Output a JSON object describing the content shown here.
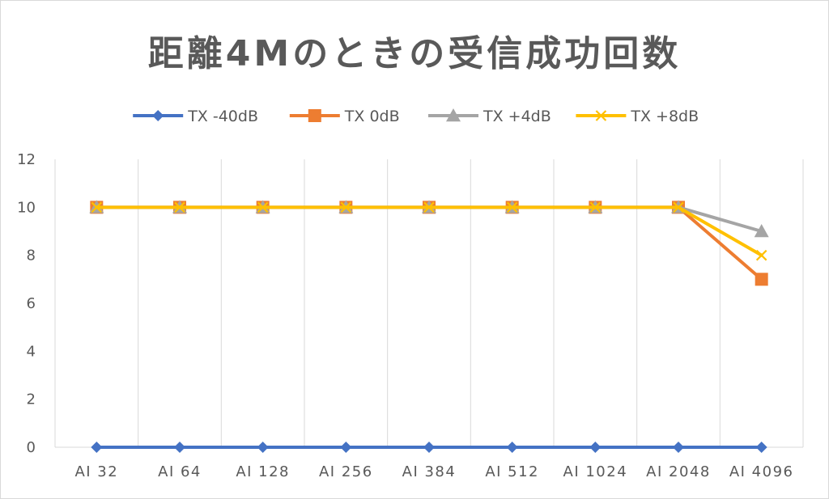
{
  "chart_data": {
    "type": "line",
    "title": "距離4Mのときの受信成功回数",
    "categories": [
      "AI 32",
      "AI 64",
      "AI 128",
      "AI 256",
      "AI 384",
      "AI 512",
      "AI 1024",
      "AI 2048",
      "AI 4096"
    ],
    "ylim": [
      0,
      12
    ],
    "yticks": [
      "0",
      "2",
      "4",
      "6",
      "8",
      "10",
      "12"
    ],
    "grid": "vertical",
    "legend_position": "top",
    "series": [
      {
        "name": "TX -40dB",
        "values": [
          0,
          0,
          0,
          0,
          0,
          0,
          0,
          0,
          0
        ],
        "color": "#4472c4",
        "marker": "diamond"
      },
      {
        "name": "TX 0dB",
        "values": [
          10,
          10,
          10,
          10,
          10,
          10,
          10,
          10,
          7
        ],
        "color": "#ed7d31",
        "marker": "square"
      },
      {
        "name": "TX +4dB",
        "values": [
          10,
          10,
          10,
          10,
          10,
          10,
          10,
          10,
          9
        ],
        "color": "#a5a5a5",
        "marker": "triangle"
      },
      {
        "name": "TX +8dB",
        "values": [
          10,
          10,
          10,
          10,
          10,
          10,
          10,
          10,
          8
        ],
        "color": "#ffc000",
        "marker": "x"
      }
    ]
  }
}
